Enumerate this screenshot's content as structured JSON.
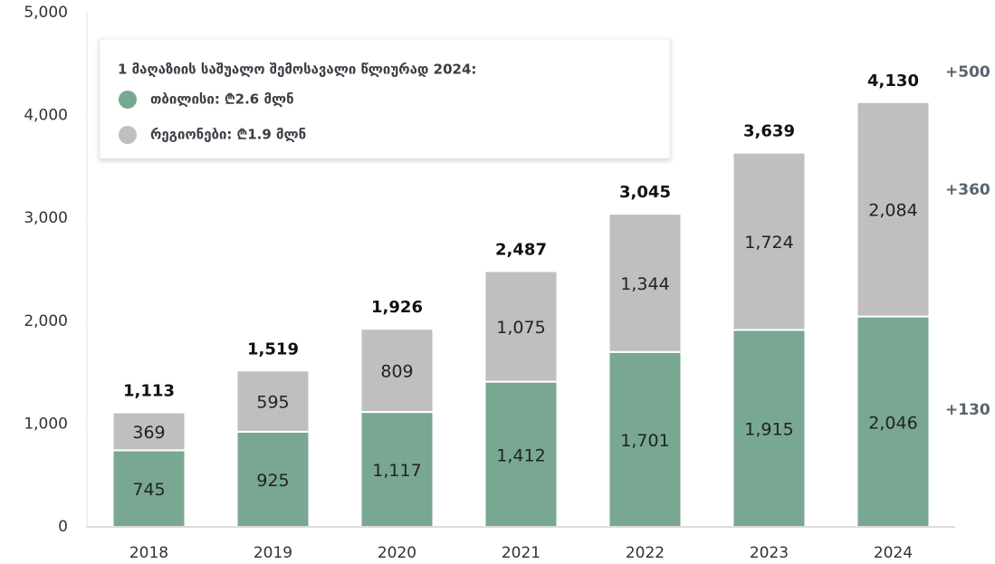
{
  "chart_data": {
    "type": "bar",
    "stacked": true,
    "categories": [
      "2018",
      "2019",
      "2020",
      "2021",
      "2022",
      "2023",
      "2024"
    ],
    "series": [
      {
        "name": "თბილისი: ₾2.6 მლნ",
        "color": "#78a891",
        "values": [
          745,
          925,
          1117,
          1412,
          1701,
          1915,
          2046
        ],
        "value_labels": [
          "745",
          "925",
          "1,117",
          "1,412",
          "1,701",
          "1,915",
          "2,046"
        ]
      },
      {
        "name": "რეგიონები: ₾1.9 მლნ",
        "color": "#bfbfbf",
        "values": [
          369,
          595,
          809,
          1075,
          1344,
          1724,
          2084
        ],
        "value_labels": [
          "369",
          "595",
          "809",
          "1,075",
          "1,344",
          "1,724",
          "2,084"
        ]
      }
    ],
    "totals": {
      "values": [
        1113,
        1519,
        1926,
        2487,
        3045,
        3639,
        4130
      ],
      "value_labels": [
        "1,113",
        "1,519",
        "1,926",
        "2,487",
        "3,045",
        "3,639",
        "4,130"
      ]
    },
    "legend_title": "1 მაღაზიის საშუალო შემოსავალი წლიურად 2024:",
    "annotations": [
      "+500",
      "+360",
      "+130"
    ],
    "ylim": [
      0,
      5000
    ],
    "yticks": [
      0,
      {
        "value": 1000,
        "label": "1,000"
      },
      {
        "value": 2000,
        "label": "2,000"
      },
      {
        "value": 3000,
        "label": "3,000"
      },
      {
        "value": 4000,
        "label": "4,000"
      },
      {
        "value": 5000,
        "label": "5,000"
      }
    ],
    "grid": false
  }
}
